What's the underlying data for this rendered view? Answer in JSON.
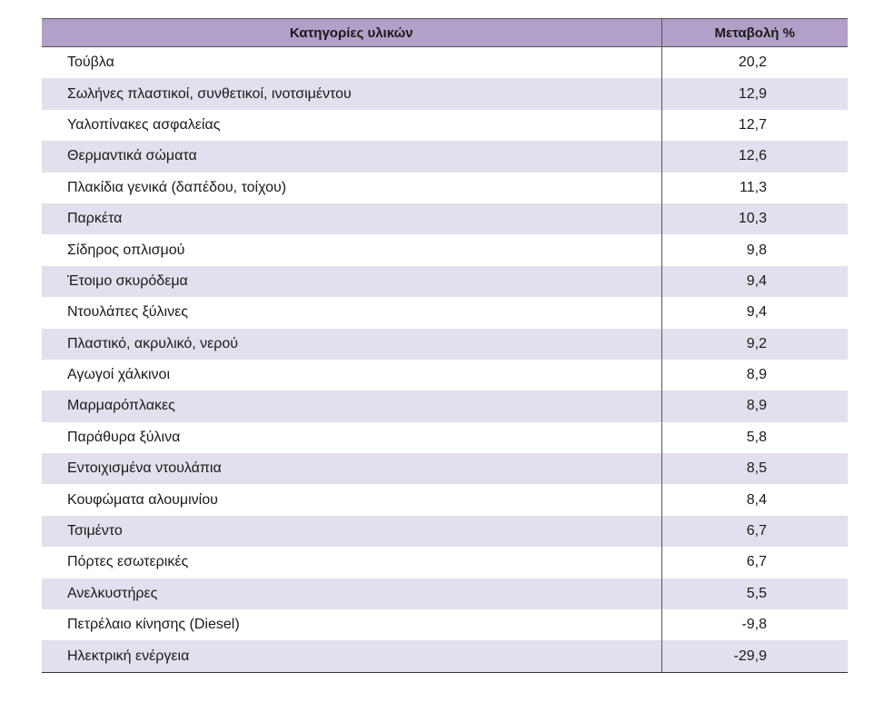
{
  "table": {
    "headers": {
      "category": "Κατηγορίες υλικών",
      "change": "Μεταβολή %"
    },
    "rows": [
      {
        "category": "Τούβλα",
        "change": "20,2"
      },
      {
        "category": "Σωλήνες πλαστικοί, συνθετικοί, ινοτσιμέντου",
        "change": "12,9"
      },
      {
        "category": "Υαλοπίνακες ασφαλείας",
        "change": "12,7"
      },
      {
        "category": "Θερμαντικά σώματα",
        "change": "12,6"
      },
      {
        "category": "Πλακίδια γενικά (δαπέδου, τοίχου)",
        "change": "11,3"
      },
      {
        "category": "Παρκέτα",
        "change": "10,3"
      },
      {
        "category": "Σίδηρος οπλισμού",
        "change": "9,8"
      },
      {
        "category": "Έτοιμο σκυρόδεμα",
        "change": "9,4"
      },
      {
        "category": "Ντουλάπες ξύλινες",
        "change": "9,4"
      },
      {
        "category": "Πλαστικό, ακρυλικό, νερού",
        "change": "9,2"
      },
      {
        "category": "Αγωγοί χάλκινοι",
        "change": "8,9"
      },
      {
        "category": "Μαρμαρόπλακες",
        "change": "8,9"
      },
      {
        "category": "Παράθυρα ξύλινα",
        "change": "5,8"
      },
      {
        "category": "Εντοιχισμένα ντουλάπια",
        "change": "8,5"
      },
      {
        "category": "Κουφώματα αλουμινίου",
        "change": "8,4"
      },
      {
        "category": "Τσιμέντο",
        "change": "6,7"
      },
      {
        "category": "Πόρτες εσωτερικές",
        "change": "6,7"
      },
      {
        "category": "Ανελκυστήρες",
        "change": "5,5"
      },
      {
        "category": "Πετρέλαιο κίνησης (Diesel)",
        "change": "-9,8"
      },
      {
        "category": "Ηλεκτρική ενέργεια",
        "change": "-29,9"
      }
    ]
  },
  "colors": {
    "header_bg": "#b1a0c7",
    "stripe_bg": "#e4dfec"
  }
}
